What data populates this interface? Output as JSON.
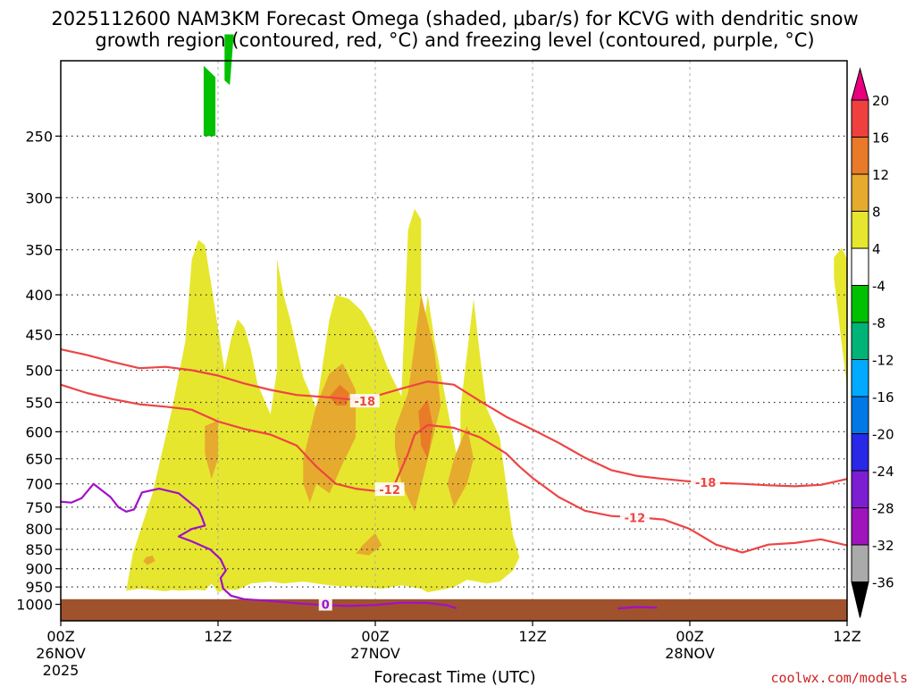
{
  "chart_data": {
    "type": "time-height cross section",
    "title": "2025112600 NAM3KM Forecast Omega (shaded, μbar/s) for KCVG with dendritic snow growth region (contoured, red, °C) and freezing level (contoured, purple, °C)",
    "title_lines": [
      "2025112600 NAM3KM Forecast Omega (shaded, μbar/s) for KCVG with dendritic snow",
      "growth region (contoured, red, °C) and freezing level (contoured, purple, °C)"
    ],
    "xlabel": "Forecast Time (UTC)",
    "x_range_hours": [
      0,
      60
    ],
    "x_ticks": [
      {
        "hour": 0,
        "label": "00Z",
        "date": "26NOV",
        "year": "2025"
      },
      {
        "hour": 12,
        "label": "12Z",
        "date": "",
        "year": ""
      },
      {
        "hour": 24,
        "label": "00Z",
        "date": "27NOV",
        "year": ""
      },
      {
        "hour": 36,
        "label": "12Z",
        "date": "",
        "year": ""
      },
      {
        "hour": 48,
        "label": "00Z",
        "date": "28NOV",
        "year": ""
      },
      {
        "hour": 60,
        "label": "12Z",
        "date": "",
        "year": ""
      }
    ],
    "y_range_hpa": [
      1050,
      200
    ],
    "y_ticks": [
      250,
      300,
      350,
      400,
      450,
      500,
      550,
      600,
      650,
      700,
      750,
      800,
      850,
      900,
      950,
      1000
    ],
    "surface_hpa": 985,
    "colorbar": {
      "labels": [
        "20",
        "16",
        "12",
        "8",
        "4",
        "-4",
        "-8",
        "-12",
        "-16",
        "-20",
        "-24",
        "-28",
        "-32",
        "-36"
      ],
      "colors": [
        "#e8007e",
        "#ef4040",
        "#e87a28",
        "#e6aa2e",
        "#e6e62e",
        "#ffffff",
        "#00c000",
        "#00b478",
        "#00aaff",
        "#0078e6",
        "#2828e6",
        "#7d1ed2",
        "#a014be",
        "#aaaaaa",
        "#000000"
      ]
    },
    "omega_colors": {
      "pos4": "#e6e62e",
      "pos8": "#e6aa2e",
      "pos12": "#e87a28",
      "neg4": "#00c000"
    },
    "contours": {
      "dendritic_minus18": {
        "label": "-18",
        "color": "#ee4444",
        "hours": [
          0,
          2,
          4,
          6,
          8,
          10,
          12,
          14,
          16,
          18,
          20,
          22,
          24,
          26,
          28,
          30,
          32,
          34,
          36,
          38,
          40,
          42,
          44,
          46,
          48,
          50,
          52,
          54,
          56,
          58,
          60
        ],
        "hpa": [
          470,
          478,
          488,
          497,
          495,
          500,
          508,
          520,
          530,
          538,
          541,
          545,
          540,
          528,
          517,
          522,
          548,
          574,
          596,
          620,
          648,
          672,
          684,
          690,
          695,
          698,
          700,
          703,
          705,
          702,
          690
        ],
        "label_at": [
          {
            "hour": 23.2,
            "hpa": 548
          },
          {
            "hour": 49.2,
            "hpa": 697
          }
        ]
      },
      "dendritic_minus12": {
        "label": "-12",
        "color": "#ee4444",
        "hours": [
          0,
          2,
          4,
          6,
          8,
          10,
          12,
          14,
          16,
          18,
          19.5,
          21,
          22.5,
          24,
          25.5,
          26.5,
          27,
          28,
          30,
          32,
          34,
          35,
          36,
          38,
          40,
          42,
          44,
          46,
          48,
          50,
          52,
          54,
          56,
          58,
          60
        ],
        "hpa": [
          522,
          535,
          545,
          553,
          557,
          562,
          582,
          595,
          605,
          625,
          665,
          700,
          710,
          715,
          700,
          640,
          605,
          588,
          593,
          610,
          640,
          665,
          688,
          728,
          758,
          770,
          773,
          778,
          800,
          838,
          858,
          838,
          834,
          825,
          840
        ],
        "label_at": [
          {
            "hour": 25.1,
            "hpa": 712
          },
          {
            "hour": 43.8,
            "hpa": 774
          }
        ]
      },
      "freezing_0": {
        "label": "0",
        "color": "#a010c8",
        "hours": [
          0,
          0.8,
          1.6,
          2.5,
          3.8,
          4.4,
          5,
          5.6,
          6.2,
          7.5,
          9,
          10.5,
          10.8,
          11,
          10,
          9,
          10,
          11.4,
          12.2,
          12.6,
          12.2,
          12.4,
          13,
          14,
          16,
          18,
          20,
          22,
          24,
          26,
          28,
          29.5,
          30.2
        ],
        "hpa": [
          738,
          740,
          730,
          700,
          728,
          750,
          760,
          755,
          718,
          710,
          720,
          755,
          775,
          792,
          800,
          818,
          830,
          850,
          875,
          905,
          925,
          955,
          975,
          985,
          990,
          997,
          1002,
          1005,
          1002,
          995,
          996,
          1003,
          1012
        ],
        "segment2_hours": [
          42.5,
          44,
          45.5
        ],
        "segment2_hpa": [
          1012,
          1008,
          1010
        ],
        "label_at": [
          {
            "hour": 20.2,
            "hpa": 1000
          }
        ]
      }
    },
    "omega_regions": [
      {
        "level": 4,
        "hours": [
          5,
          6,
          7,
          7.5,
          8,
          8.5,
          9,
          10.5,
          11,
          11.5,
          12,
          12.5,
          13.5,
          14.5,
          16,
          17,
          18.5,
          20.5,
          21.5,
          23,
          24.5,
          26,
          27.5,
          28,
          29,
          30,
          31,
          32.5,
          33.5,
          34.5,
          35,
          34.5,
          34,
          33.5,
          32.5,
          32,
          31.5,
          30.5,
          30.5,
          29.5,
          28.5,
          28,
          27.5,
          27.5,
          27,
          26.5,
          26,
          25,
          24,
          23,
          22,
          21,
          20.5,
          20,
          19.5,
          18.5,
          17.5,
          17,
          16.5,
          16.5,
          16,
          15,
          14.5,
          14,
          13.5,
          13,
          12.5,
          11.5,
          11,
          10.5,
          10,
          9.5,
          8.5,
          7,
          5.5,
          5
        ],
        "hpa": [
          960,
          955,
          958,
          960,
          962,
          958,
          960,
          958,
          960,
          940,
          965,
          958,
          958,
          940,
          935,
          940,
          935,
          945,
          948,
          950,
          955,
          945,
          955,
          965,
          958,
          950,
          930,
          940,
          935,
          905,
          870,
          815,
          705,
          610,
          560,
          480,
          405,
          560,
          680,
          560,
          455,
          400,
          470,
          320,
          310,
          330,
          540,
          500,
          450,
          420,
          405,
          400,
          430,
          490,
          560,
          510,
          430,
          400,
          360,
          500,
          570,
          520,
          470,
          440,
          430,
          455,
          500,
          390,
          345,
          340,
          360,
          460,
          560,
          720,
          860,
          960
        ]
      },
      {
        "level": 4,
        "hours": [
          59,
          59.6,
          60,
          60,
          59.5,
          59
        ],
        "hpa": [
          358,
          348,
          360,
          525,
          450,
          380
        ]
      },
      {
        "level": 8,
        "hours": [
          11,
          12,
          12,
          11.5,
          11
        ],
        "hpa": [
          590,
          580,
          650,
          690,
          640
        ]
      },
      {
        "level": 8,
        "hours": [
          18.5,
          19.5,
          20.5,
          21.5,
          22.5,
          22.5,
          21.5,
          21,
          20.5,
          19.5,
          19,
          18.5
        ],
        "hpa": [
          650,
          555,
          505,
          490,
          530,
          610,
          660,
          690,
          720,
          700,
          740,
          700
        ]
      },
      {
        "level": 8,
        "hours": [
          25.5,
          26.5,
          27.5,
          28.5,
          29,
          28,
          27,
          26,
          25.5
        ],
        "hpa": [
          595,
          535,
          400,
          470,
          555,
          650,
          760,
          700,
          630
        ]
      },
      {
        "level": 8,
        "hours": [
          30,
          31,
          31.5,
          31,
          30,
          29.5
        ],
        "hpa": [
          650,
          590,
          650,
          700,
          750,
          700
        ]
      },
      {
        "level": 8,
        "hours": [
          23,
          24,
          24.5,
          23.5,
          22.5,
          22.8
        ],
        "hpa": [
          840,
          810,
          840,
          865,
          860,
          850
        ]
      },
      {
        "level": 8,
        "hours": [
          6.5,
          7,
          7.2,
          6.6,
          6.3
        ],
        "hpa": [
          870,
          865,
          880,
          890,
          880
        ]
      },
      {
        "level": 12,
        "hours": [
          20.5,
          21.3,
          22,
          21.8,
          21
        ],
        "hpa": [
          540,
          522,
          535,
          555,
          555
        ]
      },
      {
        "level": 12,
        "hours": [
          27.3,
          28,
          28.4,
          28,
          27.5
        ],
        "hpa": [
          565,
          545,
          590,
          650,
          625
        ]
      },
      {
        "level": -4,
        "hours": [
          10.9,
          11.8,
          11.8,
          10.9
        ],
        "hpa": [
          203,
          210,
          250,
          250
        ]
      },
      {
        "level": -4,
        "hours": [
          12.5,
          13.2,
          12.9,
          12.5
        ],
        "hpa": [
          185,
          185,
          215,
          212
        ]
      }
    ]
  },
  "credit": "coolwx.com/models"
}
